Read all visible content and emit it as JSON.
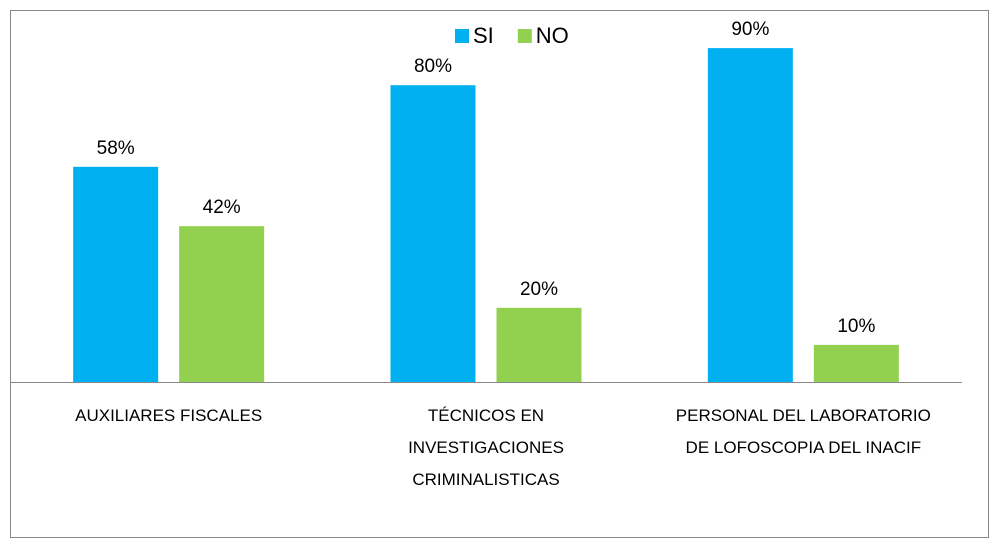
{
  "chart_data": {
    "type": "bar",
    "categories": [
      "AUXILIARES FISCALES",
      "TÉCNICOS EN INVESTIGACIONES CRIMINALISTICAS",
      "PERSONAL DEL LABORATORIO DE LOFOSCOPIA DEL INACIF"
    ],
    "series": [
      {
        "name": "SI",
        "color": "#00b0f0",
        "values": [
          58,
          80,
          90
        ],
        "value_labels": [
          "58%",
          "80%",
          "90%"
        ]
      },
      {
        "name": "NO",
        "color": "#92d050",
        "values": [
          42,
          20,
          10
        ],
        "value_labels": [
          "42%",
          "20%",
          "10%"
        ]
      }
    ],
    "ylim": [
      0,
      100
    ],
    "legend": "top"
  }
}
